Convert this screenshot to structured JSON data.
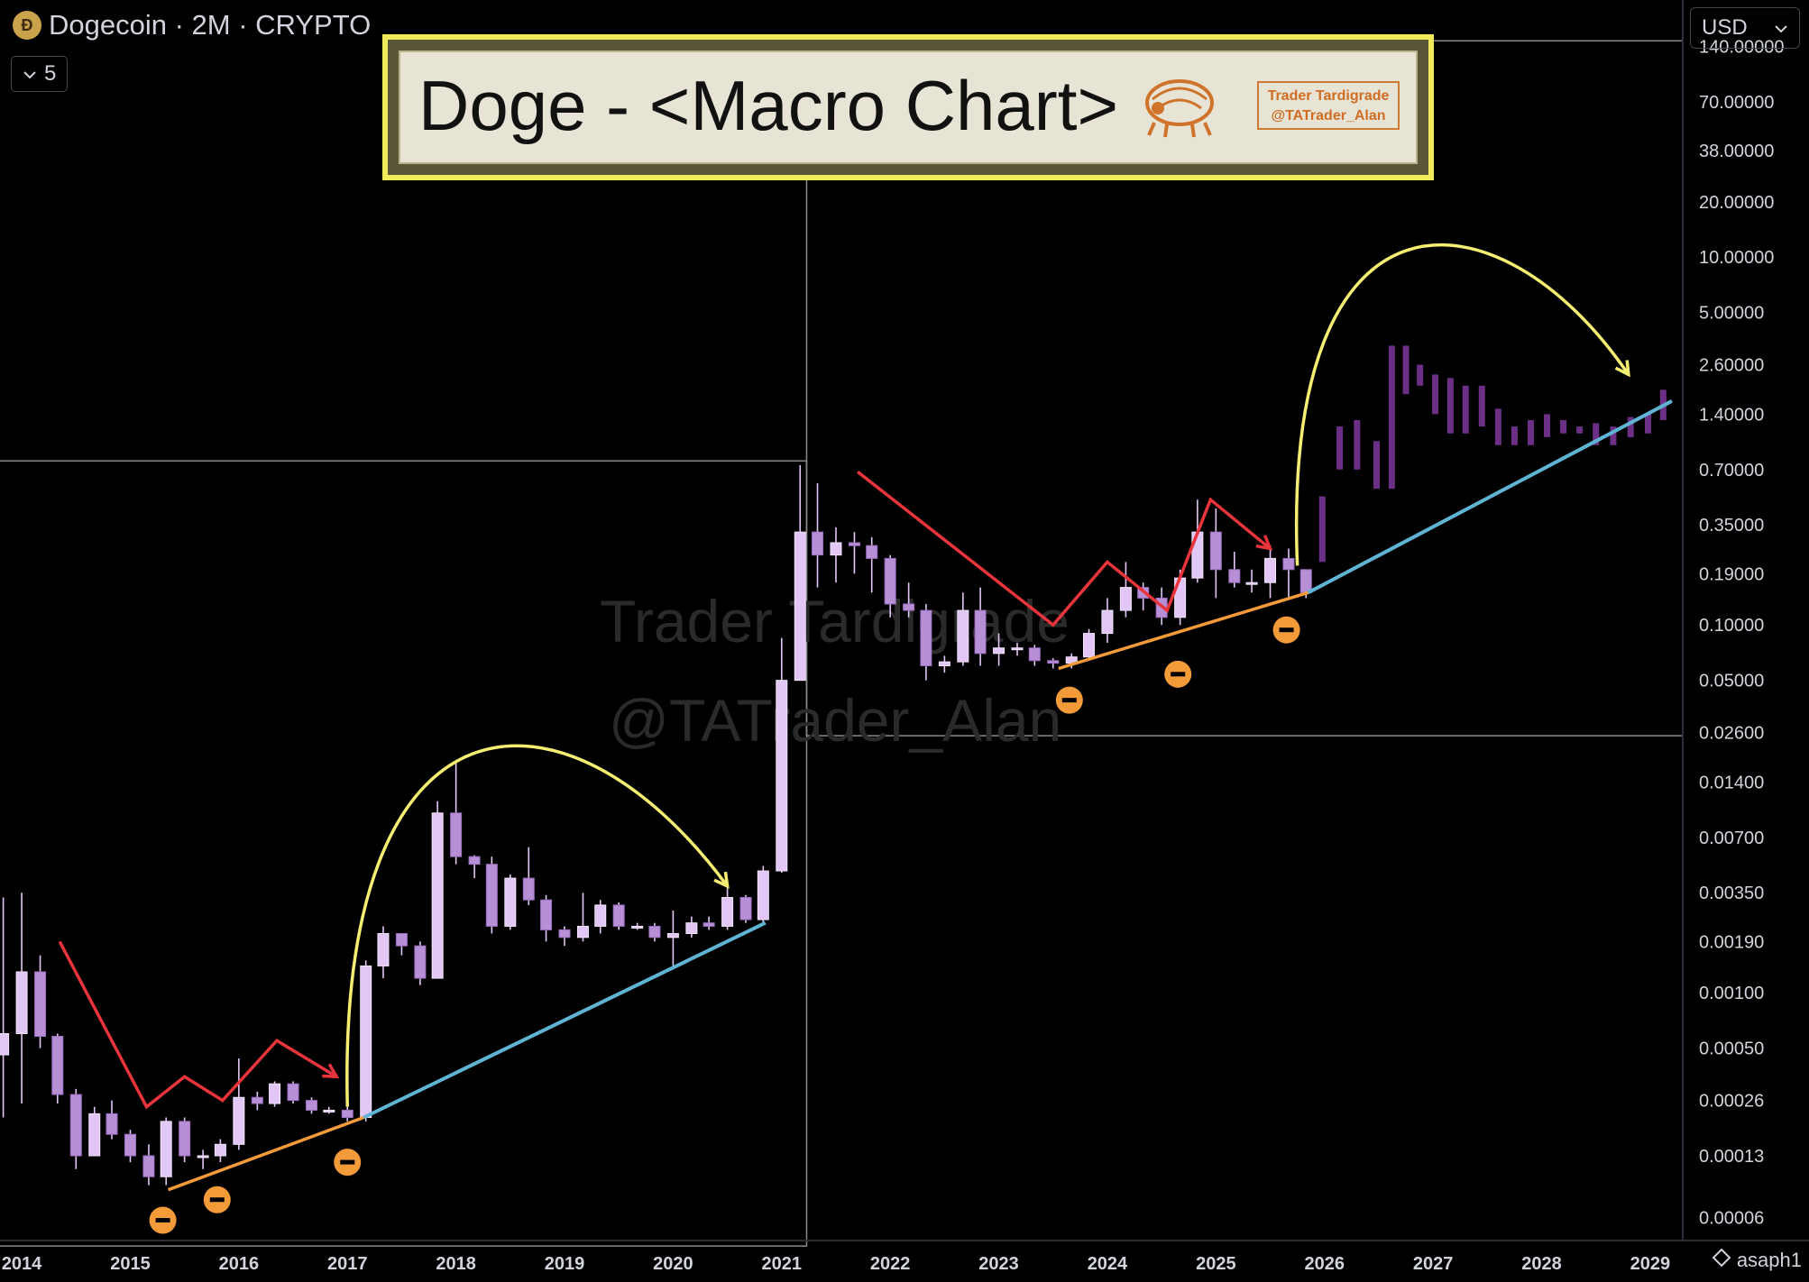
{
  "header": {
    "title": "Dogecoin · 2M · CRYPTO",
    "coin_glyph": "Ð",
    "indicator_count": "5"
  },
  "currency": {
    "label": "USD"
  },
  "banner": {
    "title": "Doge - <Macro Chart>",
    "badge_line1": "Trader Tardigrade",
    "badge_line2": "@TATrader_Alan"
  },
  "watermark": {
    "line1": "Trader Tardigrade",
    "line2": "@TATrader_Alan"
  },
  "footer": {
    "user": "asaph1"
  },
  "colors": {
    "candle": "#e2c6f5",
    "projection": "#6b2f86",
    "downtrend": "#e8343a",
    "support": "#f39a39",
    "trend": "#5fb3d3",
    "arc": "#f5ee70",
    "marker": "#f39a39"
  },
  "chart_data": {
    "type": "candlestick",
    "y_scale": "log",
    "ylim": [
      4.5e-05,
      250
    ],
    "xlim": [
      2013.8,
      2029.3
    ],
    "y_ticks": [
      "140.00000",
      "70.00000",
      "38.00000",
      "20.00000",
      "10.00000",
      "5.00000",
      "2.60000",
      "1.40000",
      "0.70000",
      "0.35000",
      "0.19000",
      "0.10000",
      "0.05000",
      "0.02600",
      "0.01400",
      "0.00700",
      "0.00350",
      "0.00190",
      "0.00100",
      "0.00050",
      "0.00026",
      "0.00013",
      "0.00006"
    ],
    "x_ticks": [
      "2014",
      "2015",
      "2016",
      "2017",
      "2018",
      "2019",
      "2020",
      "2021",
      "2022",
      "2023",
      "2024",
      "2025",
      "2026",
      "2027",
      "2028",
      "2029"
    ],
    "candles": [
      [
        2013.83,
        0.00046,
        0.0006,
        0.0033,
        0.00021
      ],
      [
        2014.0,
        0.0006,
        0.0013,
        0.0035,
        0.00025
      ],
      [
        2014.17,
        0.0013,
        0.00058,
        0.0016,
        0.0005
      ],
      [
        2014.33,
        0.00058,
        0.00028,
        0.0006,
        0.00025
      ],
      [
        2014.5,
        0.00028,
        0.00013,
        0.0003,
        0.00011
      ],
      [
        2014.67,
        0.00013,
        0.00022,
        0.00024,
        0.00013
      ],
      [
        2014.83,
        0.00022,
        0.00017,
        0.00026,
        0.00016
      ],
      [
        2015.0,
        0.00017,
        0.00013,
        0.00018,
        0.00012
      ],
      [
        2015.17,
        0.00013,
        0.0001,
        0.00015,
        9e-05
      ],
      [
        2015.33,
        0.0001,
        0.0002,
        0.00021,
        9e-05
      ],
      [
        2015.5,
        0.0002,
        0.00013,
        0.00021,
        0.00012
      ],
      [
        2015.67,
        0.00013,
        0.00013,
        0.00014,
        0.00011
      ],
      [
        2015.83,
        0.00013,
        0.00015,
        0.00016,
        0.00012
      ],
      [
        2016.0,
        0.00015,
        0.00027,
        0.00044,
        0.00014
      ],
      [
        2016.17,
        0.00027,
        0.00025,
        0.00029,
        0.00023
      ],
      [
        2016.33,
        0.00025,
        0.00032,
        0.00033,
        0.00024
      ],
      [
        2016.5,
        0.00032,
        0.00026,
        0.00033,
        0.00025
      ],
      [
        2016.67,
        0.00026,
        0.00023,
        0.00027,
        0.00022
      ],
      [
        2016.83,
        0.00023,
        0.00023,
        0.00024,
        0.00022
      ],
      [
        2017.0,
        0.00023,
        0.00021,
        0.00024,
        0.0002
      ],
      [
        2017.17,
        0.00021,
        0.0014,
        0.0015,
        0.0002
      ],
      [
        2017.33,
        0.0014,
        0.0021,
        0.0023,
        0.0012
      ],
      [
        2017.5,
        0.0021,
        0.0018,
        0.0021,
        0.0016
      ],
      [
        2017.67,
        0.0018,
        0.0012,
        0.0019,
        0.0011
      ],
      [
        2017.83,
        0.0012,
        0.0095,
        0.011,
        0.0012
      ],
      [
        2018.0,
        0.0095,
        0.0055,
        0.018,
        0.005
      ],
      [
        2018.17,
        0.0055,
        0.005,
        0.0056,
        0.0042
      ],
      [
        2018.33,
        0.005,
        0.0023,
        0.0055,
        0.0021
      ],
      [
        2018.5,
        0.0023,
        0.0042,
        0.0044,
        0.0022
      ],
      [
        2018.67,
        0.0042,
        0.0032,
        0.0062,
        0.003
      ],
      [
        2018.83,
        0.0032,
        0.0022,
        0.0034,
        0.0019
      ],
      [
        2019.0,
        0.0022,
        0.002,
        0.0023,
        0.0018
      ],
      [
        2019.17,
        0.002,
        0.0023,
        0.0035,
        0.0019
      ],
      [
        2019.33,
        0.0023,
        0.003,
        0.0032,
        0.0021
      ],
      [
        2019.5,
        0.003,
        0.0023,
        0.0031,
        0.0022
      ],
      [
        2019.67,
        0.0023,
        0.0023,
        0.0024,
        0.0022
      ],
      [
        2019.83,
        0.0023,
        0.002,
        0.0024,
        0.0019
      ],
      [
        2020.0,
        0.002,
        0.0021,
        0.0028,
        0.0014
      ],
      [
        2020.17,
        0.0021,
        0.0024,
        0.0026,
        0.002
      ],
      [
        2020.33,
        0.0024,
        0.0023,
        0.0026,
        0.0022
      ],
      [
        2020.5,
        0.0023,
        0.0033,
        0.0038,
        0.0022
      ],
      [
        2020.67,
        0.0033,
        0.0025,
        0.0034,
        0.0024
      ],
      [
        2020.83,
        0.0025,
        0.0046,
        0.0049,
        0.0024
      ],
      [
        2021.0,
        0.0046,
        0.05,
        0.085,
        0.0045
      ],
      [
        2021.17,
        0.05,
        0.32,
        0.74,
        0.05
      ],
      [
        2021.33,
        0.32,
        0.24,
        0.59,
        0.16
      ],
      [
        2021.5,
        0.24,
        0.28,
        0.34,
        0.17
      ],
      [
        2021.67,
        0.28,
        0.27,
        0.32,
        0.19
      ],
      [
        2021.83,
        0.27,
        0.23,
        0.3,
        0.15
      ],
      [
        2022.0,
        0.23,
        0.13,
        0.24,
        0.11
      ],
      [
        2022.17,
        0.13,
        0.12,
        0.17,
        0.11
      ],
      [
        2022.33,
        0.12,
        0.06,
        0.13,
        0.05
      ],
      [
        2022.5,
        0.06,
        0.063,
        0.068,
        0.055
      ],
      [
        2022.67,
        0.063,
        0.12,
        0.15,
        0.06
      ],
      [
        2022.83,
        0.12,
        0.07,
        0.16,
        0.06
      ],
      [
        2023.0,
        0.07,
        0.075,
        0.09,
        0.06
      ],
      [
        2023.17,
        0.075,
        0.075,
        0.08,
        0.068
      ],
      [
        2023.33,
        0.075,
        0.064,
        0.078,
        0.06
      ],
      [
        2023.5,
        0.064,
        0.062,
        0.066,
        0.058
      ],
      [
        2023.67,
        0.062,
        0.067,
        0.07,
        0.058
      ],
      [
        2023.83,
        0.067,
        0.09,
        0.095,
        0.065
      ],
      [
        2024.0,
        0.09,
        0.12,
        0.14,
        0.08
      ],
      [
        2024.17,
        0.12,
        0.16,
        0.22,
        0.11
      ],
      [
        2024.33,
        0.16,
        0.14,
        0.17,
        0.12
      ],
      [
        2024.5,
        0.14,
        0.11,
        0.16,
        0.1
      ],
      [
        2024.67,
        0.11,
        0.18,
        0.2,
        0.1
      ],
      [
        2024.83,
        0.18,
        0.32,
        0.48,
        0.17
      ],
      [
        2025.0,
        0.32,
        0.2,
        0.43,
        0.14
      ],
      [
        2025.17,
        0.2,
        0.17,
        0.25,
        0.16
      ],
      [
        2025.33,
        0.17,
        0.17,
        0.2,
        0.15
      ],
      [
        2025.5,
        0.17,
        0.23,
        0.27,
        0.14
      ],
      [
        2025.67,
        0.23,
        0.2,
        0.26,
        0.14
      ],
      [
        2025.83,
        0.2,
        0.15,
        0.2,
        0.14
      ]
    ],
    "projection": [
      [
        2025.98,
        0.22,
        0.5
      ],
      [
        2026.14,
        0.7,
        1.2
      ],
      [
        2026.3,
        0.7,
        1.3
      ],
      [
        2026.48,
        0.55,
        1.0
      ],
      [
        2026.62,
        0.55,
        3.3
      ],
      [
        2026.75,
        1.8,
        3.3
      ],
      [
        2026.88,
        2.0,
        2.6
      ],
      [
        2027.02,
        1.4,
        2.3
      ],
      [
        2027.16,
        1.1,
        2.2
      ],
      [
        2027.3,
        1.1,
        2.0
      ],
      [
        2027.45,
        1.2,
        2.0
      ],
      [
        2027.6,
        0.95,
        1.5
      ],
      [
        2027.75,
        0.95,
        1.2
      ],
      [
        2027.9,
        0.95,
        1.3
      ],
      [
        2028.05,
        1.05,
        1.4
      ],
      [
        2028.2,
        1.1,
        1.3
      ],
      [
        2028.35,
        1.1,
        1.2
      ],
      [
        2028.5,
        0.95,
        1.25
      ],
      [
        2028.66,
        0.95,
        1.2
      ],
      [
        2028.82,
        1.05,
        1.35
      ],
      [
        2028.98,
        1.1,
        1.4
      ],
      [
        2029.12,
        1.3,
        1.9
      ]
    ],
    "boxes": [
      {
        "x1": 2013.4,
        "x2": 2021.23,
        "y1": 4.2e-05,
        "y2": 0.78
      },
      {
        "x1": 2021.23,
        "x2": 2029.3,
        "y1": 0.025,
        "y2": 150
      }
    ],
    "lines": {
      "down1": [
        [
          2014.35,
          0.0019
        ],
        [
          2015.15,
          0.00024
        ],
        [
          2015.5,
          0.00035
        ],
        [
          2015.85,
          0.00026
        ],
        [
          2016.35,
          0.00055
        ],
        [
          2016.9,
          0.00035
        ]
      ],
      "down2": [
        [
          2021.7,
          0.68
        ],
        [
          2023.5,
          0.1
        ],
        [
          2024.0,
          0.22
        ],
        [
          2024.55,
          0.12
        ],
        [
          2024.95,
          0.48
        ],
        [
          2025.5,
          0.26
        ]
      ],
      "support1": [
        [
          2015.35,
          8.5e-05
        ],
        [
          2017.15,
          0.00021
        ]
      ],
      "support2": [
        [
          2023.55,
          0.058
        ],
        [
          2025.85,
          0.15
        ]
      ],
      "trend1": [
        [
          2017.15,
          0.00021
        ],
        [
          2020.85,
          0.0024
        ]
      ],
      "trend2": [
        [
          2025.85,
          0.15
        ],
        [
          2029.2,
          1.65
        ]
      ],
      "markers": [
        [
          2015.3,
          5.8e-05
        ],
        [
          2015.8,
          7.5e-05
        ],
        [
          2017.0,
          0.00012
        ],
        [
          2023.65,
          0.039
        ],
        [
          2024.65,
          0.054
        ],
        [
          2025.65,
          0.094
        ]
      ]
    }
  }
}
